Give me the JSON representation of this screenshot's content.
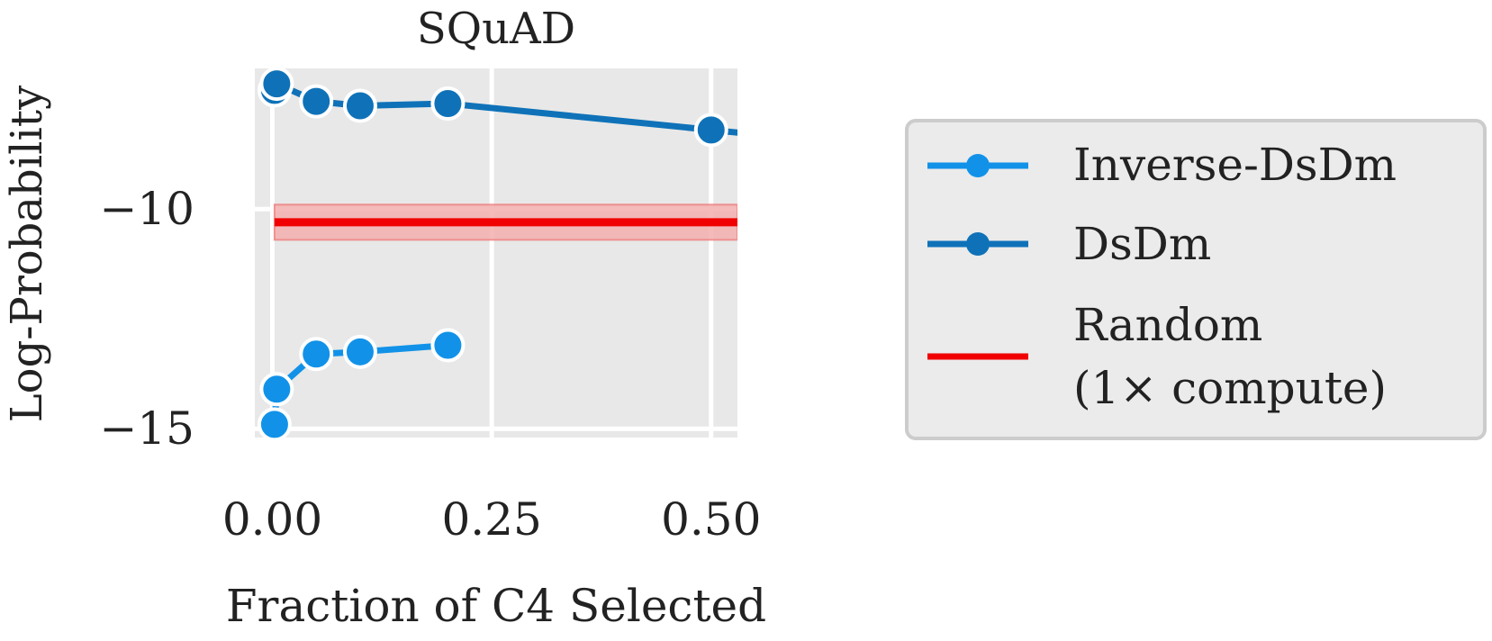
{
  "chart_data": {
    "type": "line",
    "title": "SQuAD",
    "xlabel": "Fraction of C4 Selected",
    "ylabel": "Log-Probability",
    "xlim": [
      -0.02,
      0.53
    ],
    "ylim": [
      -15.2,
      -6.8
    ],
    "xticks": [
      0.0,
      0.25,
      0.5
    ],
    "xtick_labels": [
      "0.00",
      "0.25",
      "0.50"
    ],
    "yticks": [
      -10,
      -15
    ],
    "ytick_labels": [
      "−10",
      "−15"
    ],
    "grid": true,
    "series": [
      {
        "name": "Inverse-DsDm",
        "color": "#1192e8",
        "x": [
          0.0025,
          0.005,
          0.05,
          0.1,
          0.2
        ],
        "y": [
          -14.9,
          -14.1,
          -13.3,
          -13.25,
          -13.1
        ]
      },
      {
        "name": "DsDm",
        "color": "#0f72b8",
        "x": [
          0.0025,
          0.005,
          0.05,
          0.1,
          0.2,
          0.5
        ],
        "y": [
          -7.3,
          -7.15,
          -7.55,
          -7.65,
          -7.6,
          -8.2
        ]
      }
    ],
    "baseline": {
      "name": "Random\n(1× compute)",
      "color": "#f00000",
      "x": [
        0.0025,
        0.53
      ],
      "y": -10.3,
      "band": [
        -10.7,
        -9.9
      ]
    },
    "legend": {
      "placement": "right",
      "entries": [
        "Inverse-DsDm",
        "DsDm",
        "Random",
        "(1× compute)"
      ]
    }
  }
}
